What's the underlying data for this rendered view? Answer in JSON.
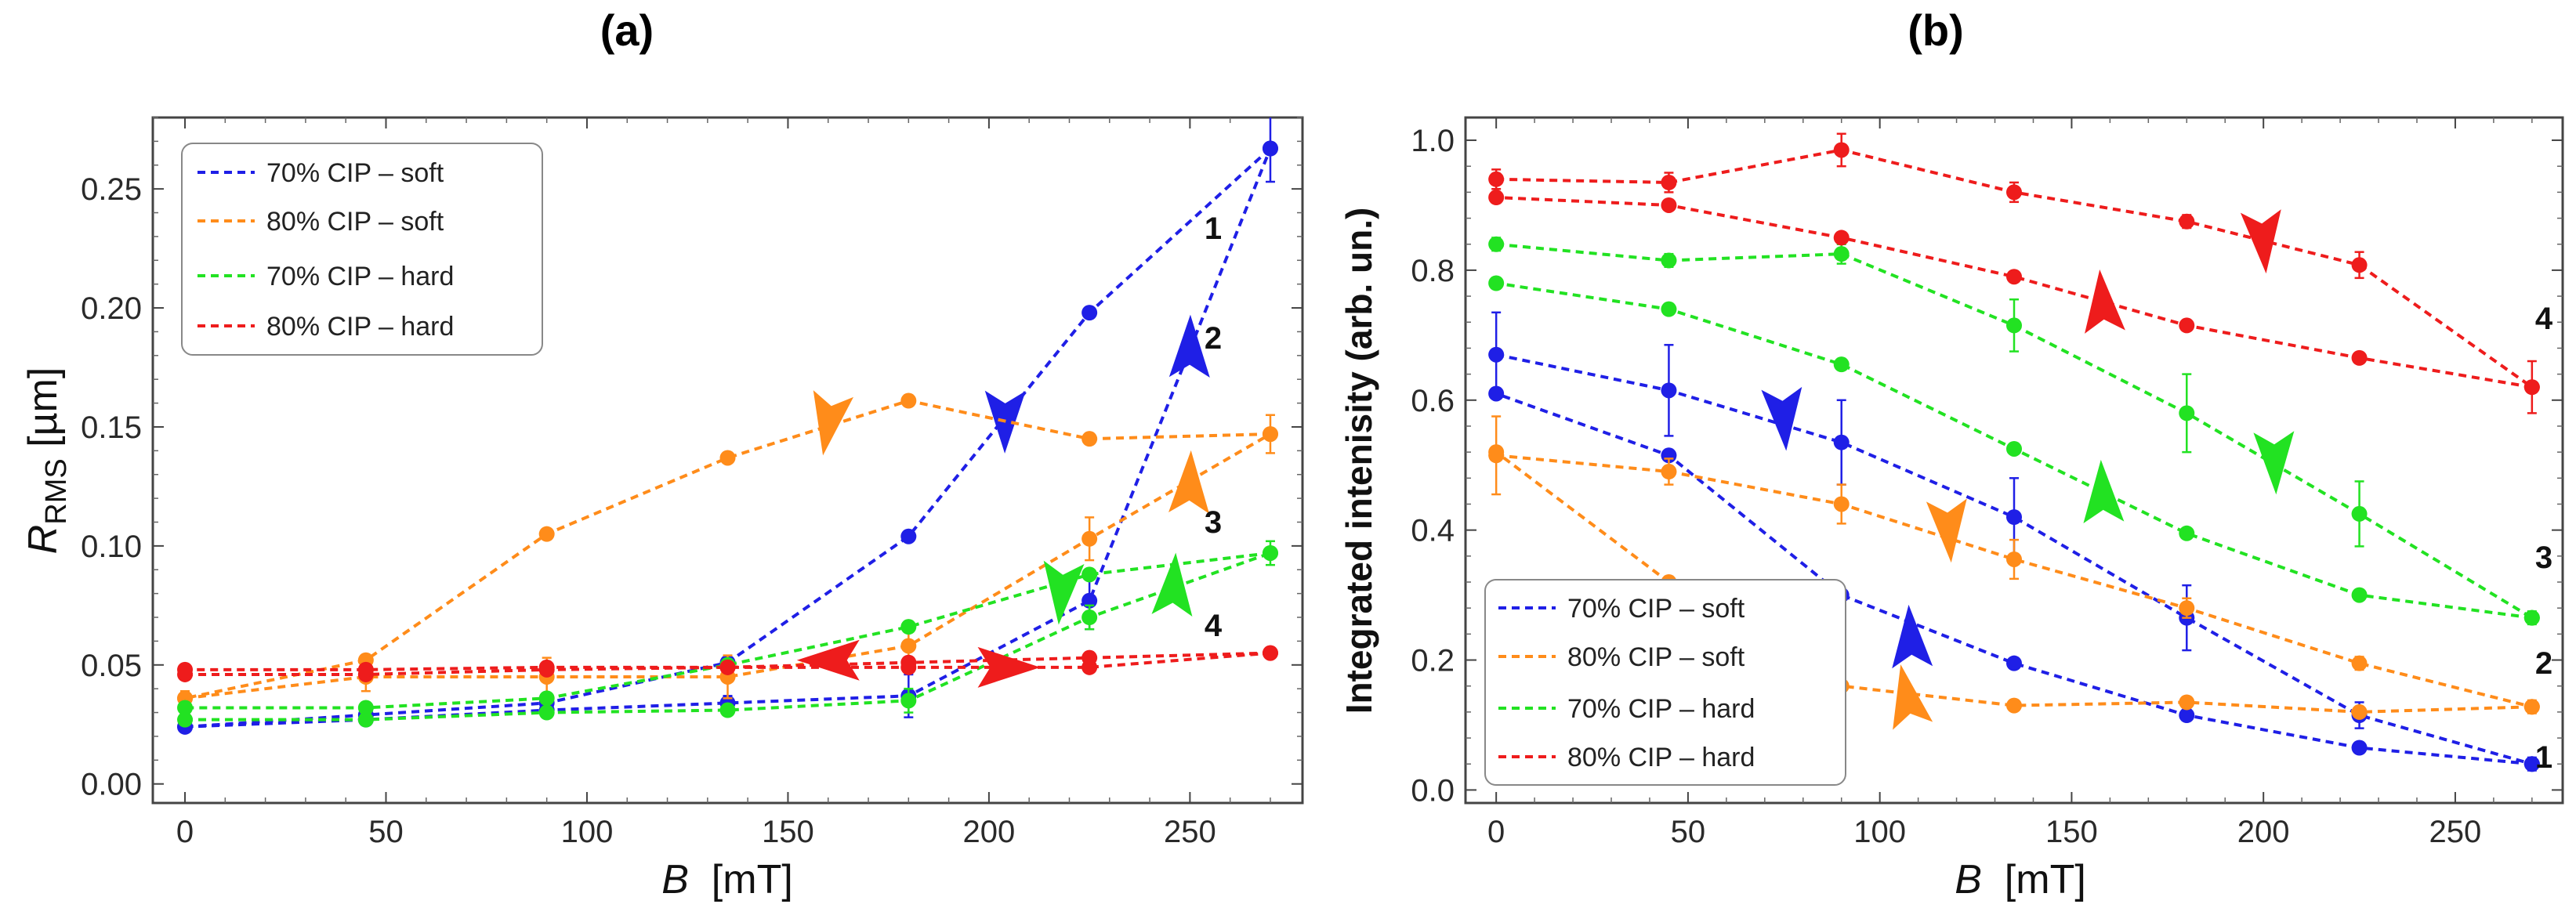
{
  "figure": {
    "panels": [
      {
        "id": "a",
        "label": "(a)",
        "ylabel_main": "R",
        "ylabel_sub": "RMS",
        "ylabel_unit": " [µm]",
        "xlabel_main": "B",
        "xlabel_unit": "  [mT]",
        "legend": [
          "70% CIP – soft",
          "80% CIP – soft",
          "70% CIP – hard",
          "80% CIP – hard"
        ],
        "curve_labels": [
          "1",
          "2",
          "3",
          "4"
        ]
      },
      {
        "id": "b",
        "label": "(b)",
        "ylabel": "Integrated intenisity (arb. un.)",
        "xlabel_main": "B",
        "xlabel_unit": "  [mT]",
        "legend": [
          "70% CIP – soft",
          "80% CIP – soft",
          "70% CIP – hard",
          "80% CIP – hard"
        ],
        "curve_labels": [
          "1",
          "2",
          "3",
          "4"
        ]
      }
    ]
  },
  "chart_data": [
    {
      "panel": "(a)",
      "type": "line",
      "title": "(a)",
      "xlabel": "B [mT]",
      "ylabel": "R_RMS [µm]",
      "xlim": [
        -8,
        278
      ],
      "ylim": [
        -0.008,
        0.28
      ],
      "xticks": [
        0,
        50,
        100,
        150,
        200,
        250
      ],
      "xtick_labels": [
        "0",
        "50",
        "100",
        "150",
        "200",
        "250"
      ],
      "yticks": [
        0.0,
        0.05,
        0.1,
        0.15,
        0.2,
        0.25
      ],
      "ytick_labels": [
        "0.00",
        "0.05",
        "0.10",
        "0.15",
        "0.20",
        "0.25"
      ],
      "legend_position": "top-left",
      "grid": false,
      "x": [
        0,
        45,
        90,
        135,
        180,
        225,
        270
      ],
      "series": [
        {
          "name": "70% CIP – soft",
          "color": "#1f1fe6",
          "up": [
            0.024,
            0.027,
            0.031,
            0.034,
            0.037,
            0.077,
            0.267
          ],
          "down": [
            0.267,
            0.198,
            0.104,
            0.051,
            0.034,
            0.029,
            0.024
          ],
          "errors": [
            0.002,
            0.002,
            0.002,
            0.003,
            0.009,
            0.012,
            0.014
          ],
          "label": "1",
          "arrows": [
            {
              "at_x": 250,
              "at_y": 0.184,
              "dx": 1,
              "dy": 0.12
            },
            {
              "at_x": 204,
              "at_y": 0.152,
              "dx": -1,
              "dy": -0.2
            }
          ]
        },
        {
          "name": "80% CIP – soft",
          "color": "#ff8c1a",
          "up": [
            0.036,
            0.045,
            0.045,
            0.045,
            0.058,
            0.103,
            0.147
          ],
          "down": [
            0.147,
            0.145,
            0.161,
            0.137,
            0.105,
            0.052,
            0.036
          ],
          "errors": [
            0.003,
            0.006,
            0.008,
            0.009,
            0.009,
            0.009,
            0.008
          ],
          "label": "2",
          "arrows": [
            {
              "at_x": 250,
              "at_y": 0.127,
              "dx": 1,
              "dy": 0.05
            },
            {
              "at_x": 160,
              "at_y": 0.151,
              "dx": -1,
              "dy": -0.01
            }
          ]
        },
        {
          "name": "70% CIP – hard",
          "color": "#22e222",
          "up": [
            0.027,
            0.027,
            0.03,
            0.031,
            0.035,
            0.07,
            0.097
          ],
          "down": [
            0.097,
            0.088,
            0.066,
            0.05,
            0.036,
            0.032,
            0.032
          ],
          "errors": [
            0.002,
            0.002,
            0.002,
            0.002,
            0.005,
            0.005,
            0.005
          ],
          "label": "3",
          "arrows": [
            {
              "at_x": 246,
              "at_y": 0.084,
              "dx": 1,
              "dy": 0.028
            },
            {
              "at_x": 218,
              "at_y": 0.08,
              "dx": -1,
              "dy": -0.02
            }
          ]
        },
        {
          "name": "80% CIP – hard",
          "color": "#ee1c1c",
          "up": [
            0.046,
            0.046,
            0.048,
            0.049,
            0.049,
            0.049,
            0.055
          ],
          "down": [
            0.055,
            0.053,
            0.051,
            0.049,
            0.049,
            0.048,
            0.048
          ],
          "errors": [
            0.002,
            0.002,
            0.002,
            0.002,
            0.002,
            0.002,
            0.002
          ],
          "label": "4",
          "arrows": [
            {
              "at_x": 205,
              "at_y": 0.049,
              "dx": 1,
              "dy": 0.0
            },
            {
              "at_x": 160,
              "at_y": 0.052,
              "dx": -1,
              "dy": 0.0
            }
          ]
        }
      ]
    },
    {
      "panel": "(b)",
      "type": "line",
      "title": "(b)",
      "xlabel": "B [mT]",
      "ylabel": "Integrated intenisity (arb. un.)",
      "xlim": [
        -8,
        278
      ],
      "ylim": [
        -0.02,
        1.035
      ],
      "xticks": [
        0,
        50,
        100,
        150,
        200,
        250
      ],
      "xtick_labels": [
        "0",
        "50",
        "100",
        "150",
        "200",
        "250"
      ],
      "yticks": [
        0.0,
        0.2,
        0.4,
        0.6,
        0.8,
        1.0
      ],
      "ytick_labels": [
        "0.0",
        "0.2",
        "0.4",
        "0.6",
        "0.8",
        "1.0"
      ],
      "legend_position": "bottom-left",
      "grid": false,
      "x": [
        0,
        45,
        90,
        135,
        180,
        225,
        270
      ],
      "series": [
        {
          "name": "70% CIP – soft",
          "color": "#1f1fe6",
          "up": [
            0.67,
            0.615,
            0.535,
            0.42,
            0.265,
            0.115,
            0.04
          ],
          "down": [
            0.04,
            0.065,
            0.115,
            0.195,
            0.3,
            0.515,
            0.61
          ],
          "errors": [
            0.065,
            0.07,
            0.065,
            0.06,
            0.05,
            0.02,
            0.01
          ],
          "label": "1",
          "arrows": [
            {
              "at_x": 75,
              "at_y": 0.57,
              "dx": 1,
              "dy": -0.08
            },
            {
              "at_x": 108,
              "at_y": 0.237,
              "dx": -1,
              "dy": 0.1
            }
          ]
        },
        {
          "name": "80% CIP – soft",
          "color": "#ff8c1a",
          "up": [
            0.515,
            0.49,
            0.44,
            0.355,
            0.28,
            0.195,
            0.128
          ],
          "down": [
            0.128,
            0.12,
            0.135,
            0.13,
            0.16,
            0.32,
            0.52
          ],
          "errors": [
            0.06,
            0.02,
            0.03,
            0.03,
            0.015,
            0.01,
            0.01
          ],
          "label": "2",
          "arrows": [
            {
              "at_x": 118,
              "at_y": 0.398,
              "dx": 1,
              "dy": -0.08
            },
            {
              "at_x": 107,
              "at_y": 0.146,
              "dx": -1,
              "dy": 0.03
            }
          ]
        },
        {
          "name": "70% CIP – hard",
          "color": "#22e222",
          "up": [
            0.84,
            0.815,
            0.825,
            0.715,
            0.58,
            0.425,
            0.265
          ],
          "down": [
            0.265,
            0.3,
            0.395,
            0.525,
            0.655,
            0.74,
            0.78
          ],
          "errors": [
            0.01,
            0.01,
            0.015,
            0.04,
            0.06,
            0.05,
            0.01
          ],
          "label": "3",
          "arrows": [
            {
              "at_x": 203,
              "at_y": 0.503,
              "dx": 1,
              "dy": -0.16
            },
            {
              "at_x": 158,
              "at_y": 0.46,
              "dx": -1,
              "dy": 0.13
            }
          ]
        },
        {
          "name": "80% CIP – hard",
          "color": "#ee1c1c",
          "up": [
            0.94,
            0.935,
            0.985,
            0.92,
            0.875,
            0.808,
            0.62
          ],
          "down": [
            0.62,
            0.665,
            0.715,
            0.79,
            0.85,
            0.9,
            0.912
          ],
          "errors": [
            0.015,
            0.015,
            0.025,
            0.015,
            0.01,
            0.02,
            0.04
          ],
          "label": "4",
          "arrows": [
            {
              "at_x": 200,
              "at_y": 0.843,
              "dx": 1,
              "dy": -0.07
            },
            {
              "at_x": 158,
              "at_y": 0.753,
              "dx": -1,
              "dy": 0.07
            }
          ]
        }
      ]
    }
  ]
}
